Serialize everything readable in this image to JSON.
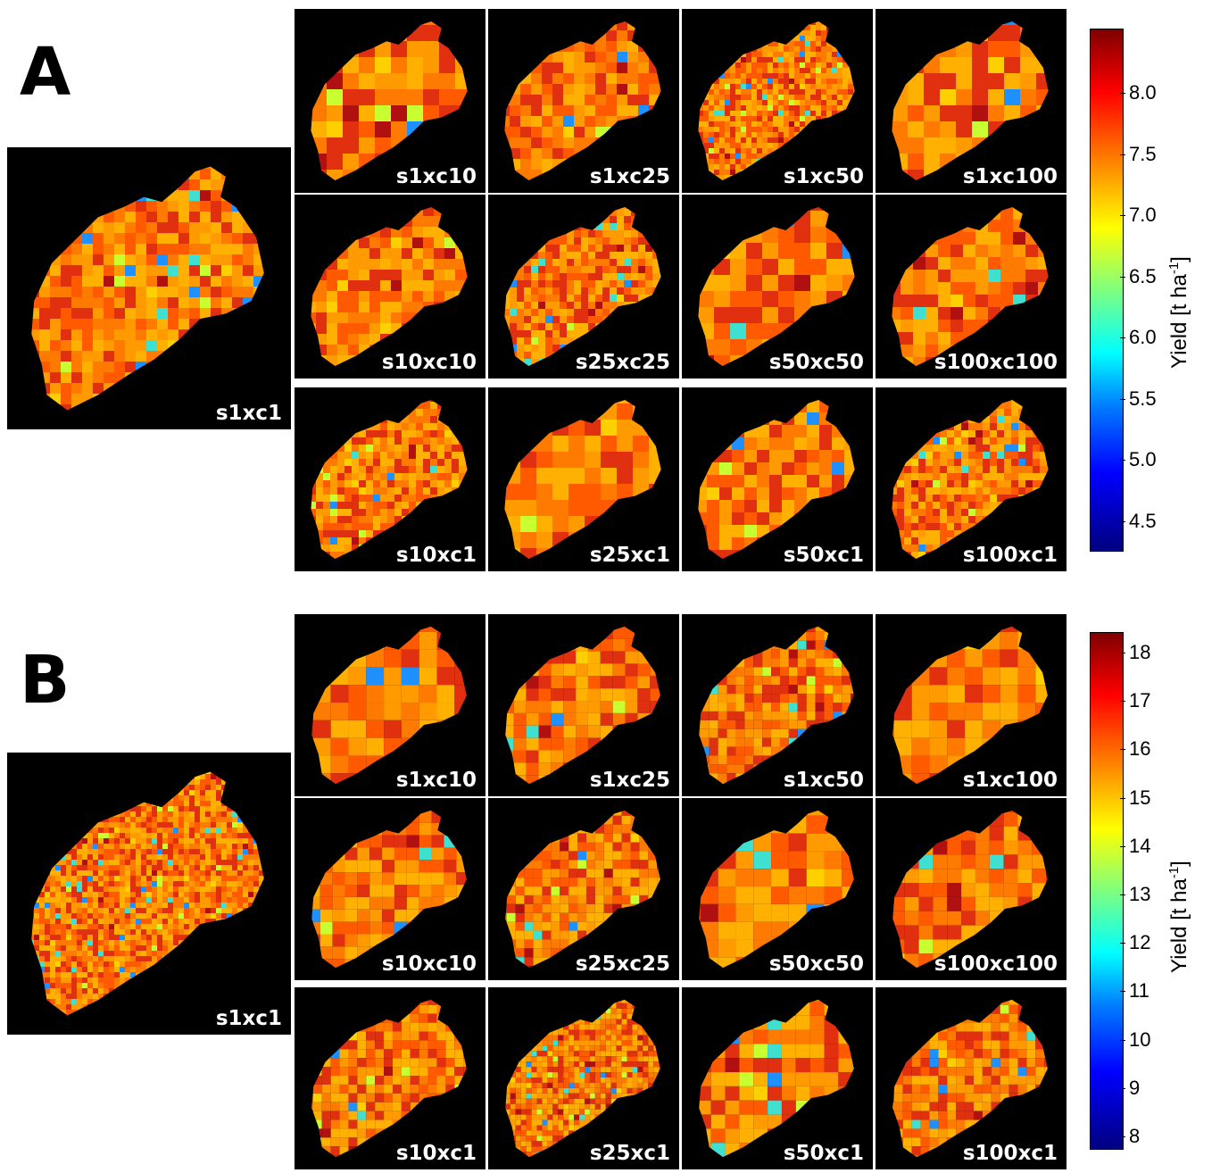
{
  "panels": [
    {
      "letter": "A",
      "base_label": "s1xc1",
      "grid_labels": [
        [
          "s1xc10",
          "s1xc25",
          "s1xc50",
          "s1xc100"
        ],
        [
          "s10xc10",
          "s25xc25",
          "s50xc50",
          "s100xc100"
        ],
        [
          "s10xc1",
          "s25xc1",
          "s50xc1",
          "s100xc1"
        ]
      ],
      "colorbar": {
        "title": "Yield [t ha",
        "title_sup": "-1",
        "title_end": "]",
        "ticks": [
          "8.0",
          "7.5",
          "7.0",
          "6.5",
          "6.0",
          "5.5",
          "5.0",
          "4.5"
        ]
      }
    },
    {
      "letter": "B",
      "base_label": "s1xc1",
      "grid_labels": [
        [
          "s1xc10",
          "s1xc25",
          "s1xc50",
          "s1xc100"
        ],
        [
          "s10xc10",
          "s25xc25",
          "s50xc50",
          "s100xc100"
        ],
        [
          "s10xc1",
          "s25xc1",
          "s50xc1",
          "s100xc1"
        ]
      ],
      "colorbar": {
        "title": "Yield [t ha",
        "title_sup": "-1",
        "title_end": "]",
        "ticks": [
          "18",
          "17",
          "16",
          "15",
          "14",
          "13",
          "12",
          "11",
          "10",
          "9",
          "8"
        ]
      }
    }
  ]
}
